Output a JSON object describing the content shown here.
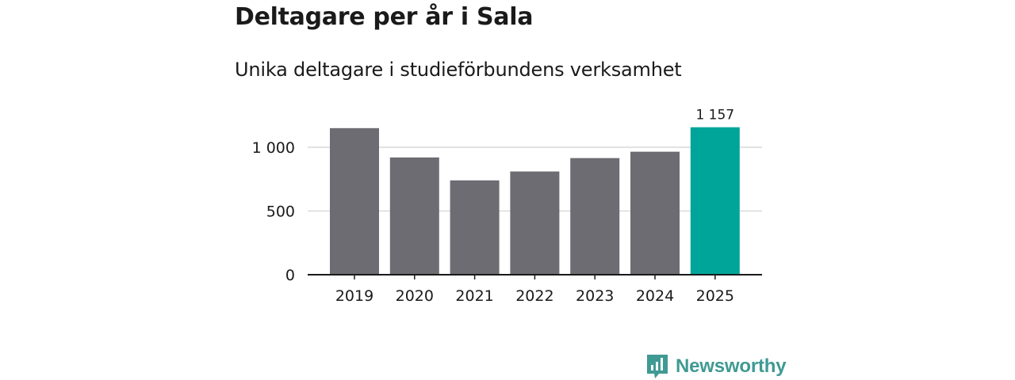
{
  "title": "Deltagare per år i Sala",
  "subtitle": "Unika deltagare i studieförbundens verksamhet",
  "brand": {
    "name": "Newsworthy",
    "icon": "newsworthy-logo-icon",
    "color": "#3f9a93"
  },
  "colors": {
    "bar": "#6d6c72",
    "highlight": "#00a599",
    "grid": "#d9d9d9",
    "axis": "#1a1a1a"
  },
  "chart_data": {
    "type": "bar",
    "categories": [
      "2019",
      "2020",
      "2021",
      "2022",
      "2023",
      "2024",
      "2025"
    ],
    "values": [
      1150,
      920,
      740,
      810,
      915,
      965,
      1157
    ],
    "highlight_index": 6,
    "data_labels": {
      "6": "1 157"
    },
    "ylim": [
      0,
      1250
    ],
    "yticks": [
      0,
      500,
      1000
    ],
    "ytick_labels": [
      "0",
      "500",
      "1 000"
    ],
    "xlabel": "",
    "ylabel": "",
    "grid": true,
    "legend": "none"
  }
}
